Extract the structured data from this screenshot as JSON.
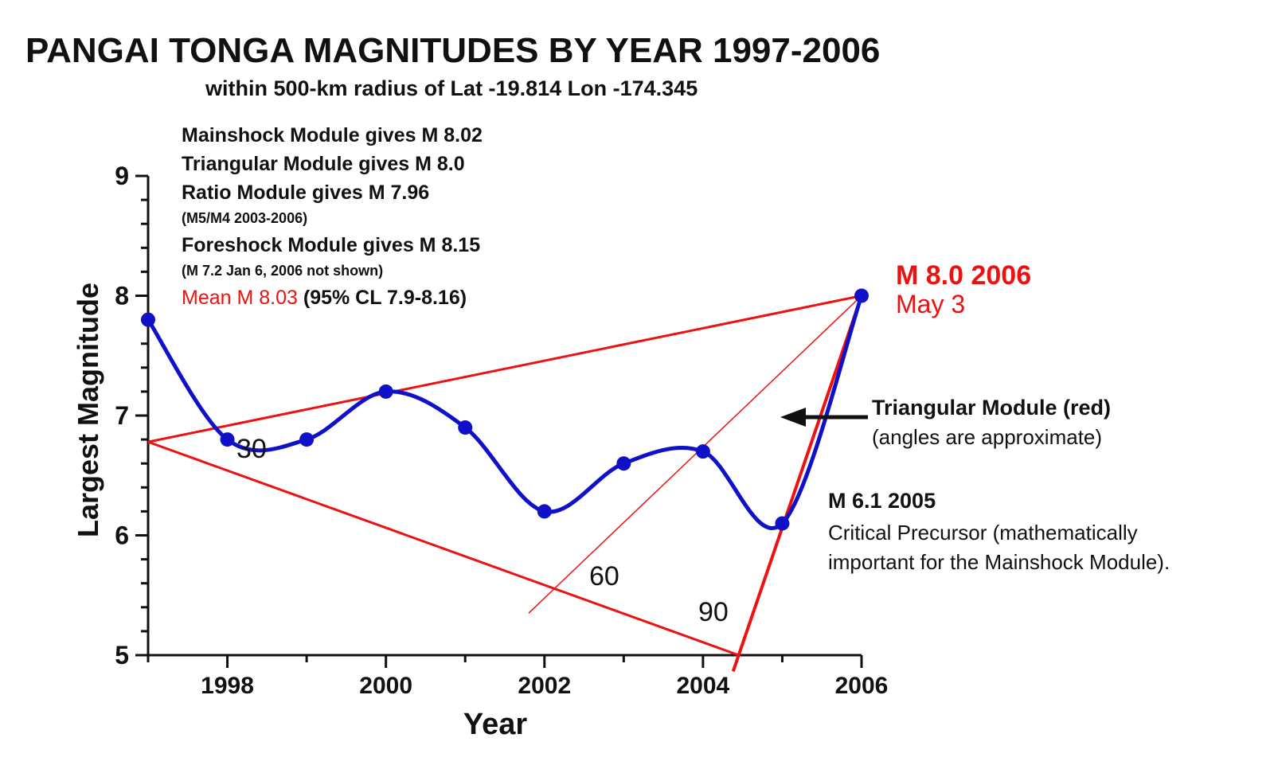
{
  "chart_data": {
    "type": "line",
    "title": "PANGAI TONGA MAGNITUDES BY YEAR 1997-2006",
    "subtitle": "within 500-km radius of Lat -19.814 Lon -174.345",
    "xlabel": "Year",
    "ylabel": "Largest Magnitude",
    "xlim": [
      1997,
      2006
    ],
    "ylim": [
      5,
      9
    ],
    "x_ticks": [
      "1998",
      "2000",
      "2002",
      "2004",
      "2006"
    ],
    "y_ticks": [
      "5",
      "6",
      "7",
      "8",
      "9"
    ],
    "series": [
      {
        "color": "#1010c8",
        "x": [
          1997,
          1998,
          1999,
          2000,
          2001,
          2002,
          2003,
          2004,
          2005,
          2006
        ],
        "y": [
          7.8,
          6.8,
          6.8,
          7.2,
          6.9,
          6.2,
          6.6,
          6.7,
          6.1,
          8.0
        ]
      }
    ],
    "triangle": {
      "color": "#ee1111",
      "vertices": [
        [
          1997,
          6.78
        ],
        [
          2006,
          8.0
        ],
        [
          2004.45,
          5.0
        ]
      ],
      "angle_line": [
        [
          2001.8,
          5.35
        ],
        [
          2006,
          8.0
        ]
      ],
      "angle_labels": [
        "30",
        "60",
        "90"
      ]
    },
    "module_lines": [
      "Mainshock Module gives M 8.02",
      "Triangular Module gives M 8.0",
      "Ratio Module gives M 7.96",
      "(M5/M4 2003-2006)",
      "Foreshock Module gives M 8.15",
      "(M 7.2 Jan 6, 2006 not shown)"
    ],
    "mean_label": "Mean M 8.03",
    "mean_ci": "(95% CL 7.9-8.16)",
    "annotations": {
      "mainshock_title": "M 8.0 2006",
      "mainshock_date": "May 3",
      "triangular_title": "Triangular Module (red)",
      "triangular_note": "(angles are approximate)",
      "precursor_title": "M 6.1 2005",
      "precursor_line1": "Critical Precursor (mathematically",
      "precursor_line2": "important for the Mainshock Module)."
    },
    "colors": {
      "series": "#1010c8",
      "triangle": "#ee1111",
      "text": "#111111"
    }
  }
}
